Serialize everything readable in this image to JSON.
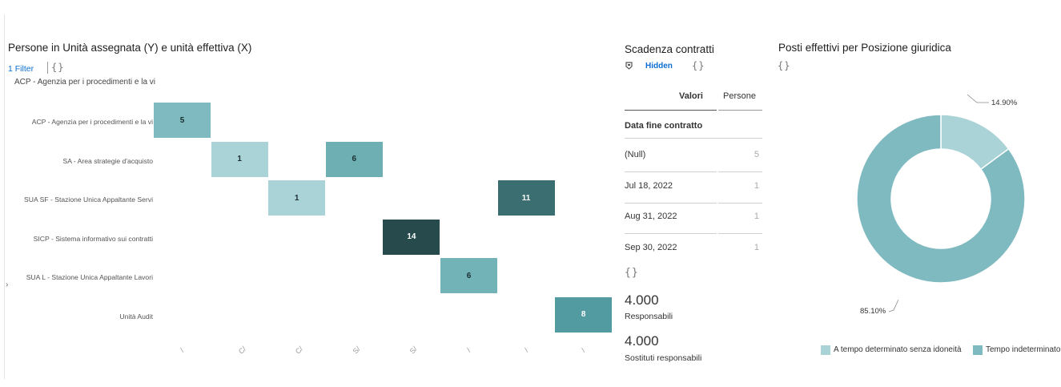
{
  "heatmap": {
    "title": "Persone in Unità assegnata (Y) e unità effettiva (X)",
    "filter_label": "1 Filter",
    "vars_glyph": "{}",
    "subtitle": "ACP - Agenzia per i procedimenti e la vi",
    "y_labels": [
      "ACP - Agenzia per i procedimenti e la vi",
      "SA - Area strategie d'acquisto",
      "SUA SF - Stazione Unica Appaltante Servi",
      "SICP - Sistema informativo sui contratti",
      "SUA L - Stazione Unica Appaltante Lavori",
      "Unità Audit"
    ],
    "x_ticks": [
      "/",
      "C/",
      "C/",
      "S/",
      "S/",
      "/",
      "/",
      "/"
    ],
    "cells": [
      {
        "row": 0,
        "col": 0,
        "value": "5",
        "color": "#7fbac0",
        "text_color": "#1b2f31"
      },
      {
        "row": 1,
        "col": 1,
        "value": "1",
        "color": "#a9d3d7",
        "text_color": "#1b2f31"
      },
      {
        "row": 1,
        "col": 3,
        "value": "6",
        "color": "#6eafb4",
        "text_color": "#1b2f31"
      },
      {
        "row": 2,
        "col": 2,
        "value": "1",
        "color": "#a9d3d7",
        "text_color": "#1b2f31"
      },
      {
        "row": 2,
        "col": 6,
        "value": "11",
        "color": "#3b6e71",
        "text_color": "#ffffff"
      },
      {
        "row": 3,
        "col": 4,
        "value": "14",
        "color": "#274b4d",
        "text_color": "#ffffff"
      },
      {
        "row": 4,
        "col": 5,
        "value": "6",
        "color": "#72b3b8",
        "text_color": "#1b2f31"
      },
      {
        "row": 5,
        "col": 7,
        "value": "8",
        "color": "#519ba1",
        "text_color": "#ffffff"
      }
    ]
  },
  "contracts": {
    "title": "Scadenza contratti",
    "hidden_label": "Hidden",
    "vars_glyph": "{}",
    "col_valori": "Valori",
    "col_persone": "Persone",
    "row_header": "Data fine contratto",
    "rows": [
      {
        "label": "(Null)",
        "value": "5"
      },
      {
        "label": "Jul 18, 2022",
        "value": "1"
      },
      {
        "label": "Aug 31, 2022",
        "value": "1"
      },
      {
        "label": "Sep 30, 2022",
        "value": "1"
      }
    ],
    "vars_glyph_2": "{}",
    "kpi1_value": "4.000",
    "kpi1_label": "Responsabili",
    "kpi2_value": "4.000",
    "kpi2_label": "Sostituti responsabili"
  },
  "donut": {
    "title": "Posti effettivi per Posizione giuridica",
    "vars_glyph": "{}",
    "slices": [
      {
        "label": "A tempo determinato senza idoneità",
        "value": 14.9,
        "pct_label": "14.90%",
        "color": "#a9d3d7"
      },
      {
        "label": "Tempo indeterminato",
        "value": 85.1,
        "pct_label": "85.10%",
        "color": "#7fbac0"
      }
    ]
  }
}
